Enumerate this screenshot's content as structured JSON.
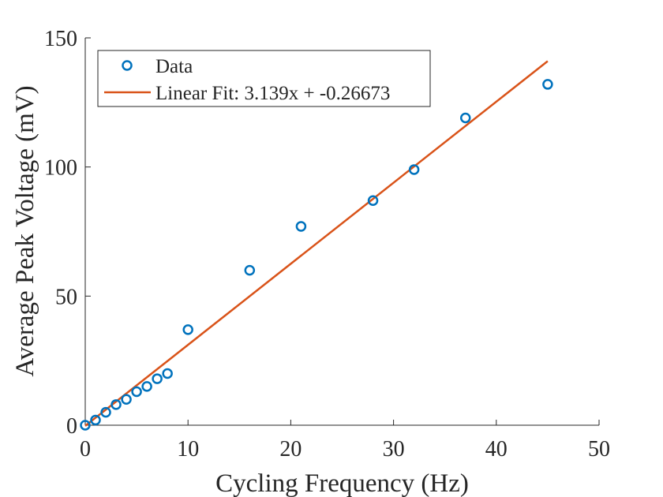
{
  "chart_data": {
    "type": "scatter",
    "xlabel": "Cycling Frequency (Hz)",
    "ylabel": "Average Peak Voltage (mV)",
    "xlim": [
      0,
      50
    ],
    "ylim": [
      0,
      150
    ],
    "xticks": [
      0,
      10,
      20,
      30,
      40,
      50
    ],
    "yticks": [
      0,
      50,
      100,
      150
    ],
    "grid": false,
    "legend_position": "top-left",
    "series": [
      {
        "name": "Data",
        "kind": "markers",
        "color": "#0072BD",
        "x": [
          0,
          1,
          2,
          3,
          4,
          5,
          6,
          7,
          8,
          10,
          16,
          21,
          28,
          32,
          37,
          45
        ],
        "y": [
          0,
          2,
          5,
          8,
          10,
          13,
          15,
          18,
          20,
          37,
          60,
          77,
          87,
          99,
          119,
          132
        ]
      },
      {
        "name": "Linear Fit: 3.139x + -0.26673",
        "kind": "line",
        "color": "#D95319",
        "slope": 3.139,
        "intercept": -0.26673,
        "x_range": [
          0,
          45
        ]
      }
    ]
  }
}
